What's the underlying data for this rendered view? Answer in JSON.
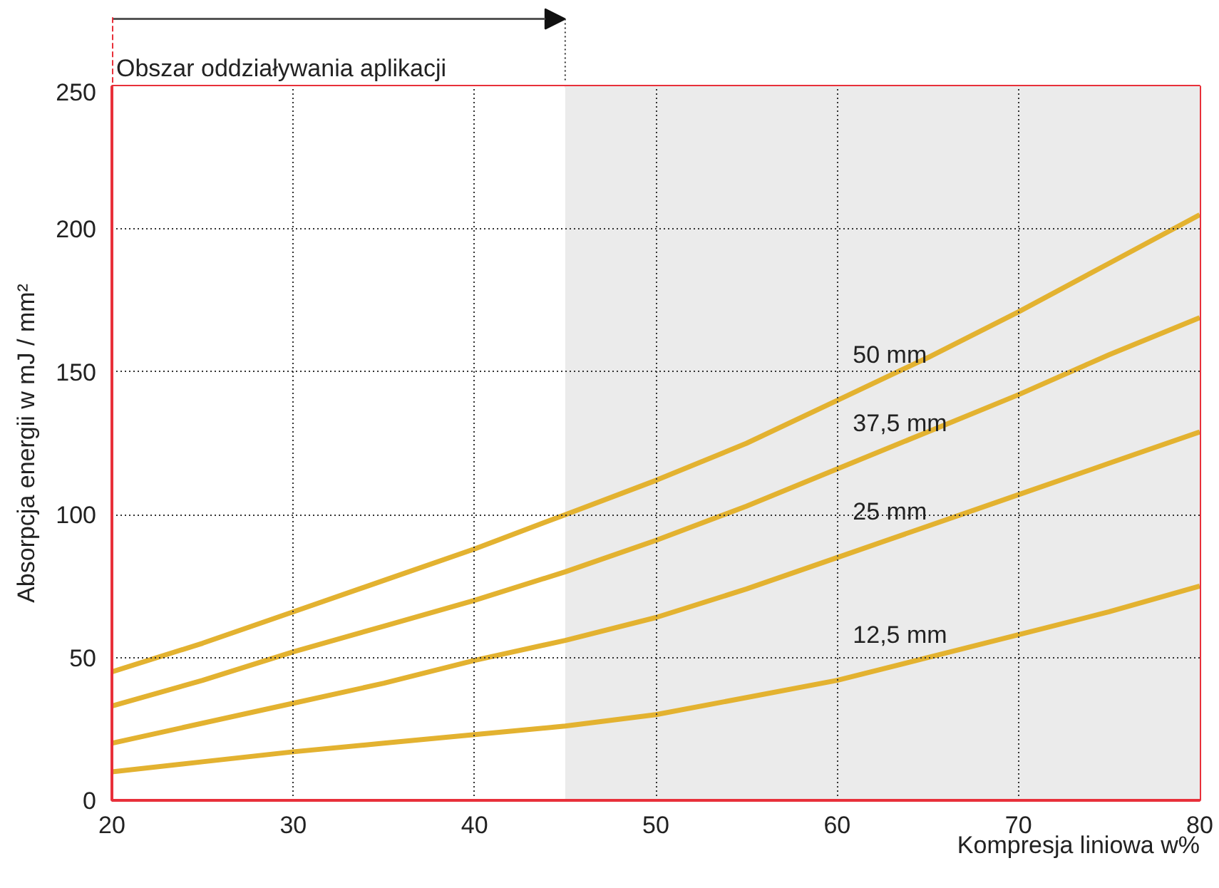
{
  "chart_data": {
    "type": "line",
    "xlabel": "Kompresja liniowa w%",
    "ylabel": "Absorpcja energii w mJ / mm²",
    "x": [
      20,
      25,
      30,
      35,
      40,
      45,
      50,
      55,
      60,
      65,
      70,
      75,
      80
    ],
    "series": [
      {
        "name": "50 mm",
        "color": "#e3b230",
        "values": [
          45,
          55,
          66,
          77,
          88,
          100,
          112,
          125,
          140,
          155,
          171,
          188,
          205
        ]
      },
      {
        "name": "37,5 mm",
        "color": "#e3b230",
        "values": [
          33,
          42,
          52,
          61,
          70,
          80,
          91,
          103,
          116,
          129,
          142,
          156,
          169
        ]
      },
      {
        "name": "25 mm",
        "color": "#e3b230",
        "values": [
          20,
          27,
          34,
          41,
          49,
          56,
          64,
          74,
          85,
          96,
          107,
          118,
          129
        ]
      },
      {
        "name": "12,5 mm",
        "color": "#e3b230",
        "values": [
          10,
          13.5,
          17,
          20,
          23,
          26,
          30,
          36,
          42,
          50,
          58,
          66,
          75
        ]
      }
    ],
    "xlim": [
      20,
      80
    ],
    "ylim": [
      0,
      250
    ],
    "xticks": [
      20,
      30,
      40,
      50,
      60,
      70,
      80
    ],
    "yticks": [
      0,
      50,
      100,
      150,
      200,
      250
    ],
    "grid": true,
    "line_style": "solid",
    "marker": "none",
    "bands": [
      {
        "axis": "x",
        "from": 20,
        "to": 45,
        "label": "Obszar oddziaływania aplikacji",
        "color": "#ffffff"
      },
      {
        "axis": "x",
        "from": 45,
        "to": 80,
        "color": "#ebebeb"
      }
    ]
  }
}
